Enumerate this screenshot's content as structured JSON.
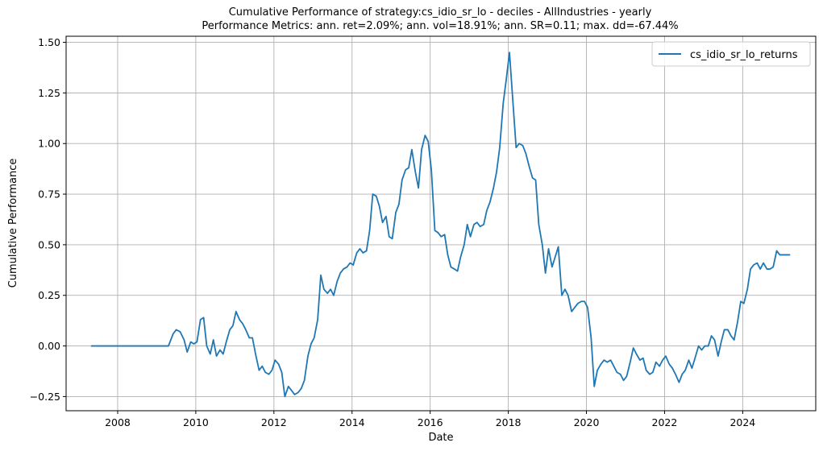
{
  "chart_data": {
    "type": "line",
    "title": "Cumulative Performance of strategy:cs_idio_sr_lo - deciles - AllIndustries - yearly",
    "subtitle": "Performance Metrics: ann. ret=2.09%; ann. vol=18.91%; ann. SR=0.11; max. dd=-67.44%",
    "xlabel": "Date",
    "ylabel": "Cumulative Performance",
    "xlim": [
      2006.68,
      2025.87
    ],
    "ylim": [
      -0.32,
      1.53
    ],
    "grid": true,
    "legend_position": "top-right",
    "x_ticks": [
      2008,
      2010,
      2012,
      2014,
      2016,
      2018,
      2020,
      2022,
      2024
    ],
    "x_tick_labels": [
      "2008",
      "2010",
      "2012",
      "2014",
      "2016",
      "2018",
      "2020",
      "2022",
      "2024"
    ],
    "y_ticks": [
      -0.25,
      0.0,
      0.25,
      0.5,
      0.75,
      1.0,
      1.25,
      1.5
    ],
    "y_tick_labels": [
      "−0.25",
      "0.00",
      "0.25",
      "0.50",
      "0.75",
      "1.00",
      "1.25",
      "1.50"
    ],
    "colors": {
      "series": "#1f77b4",
      "grid": "#b0b0b0"
    },
    "series": [
      {
        "name": "cs_idio_sr_lo_returns",
        "points": [
          [
            2007.33,
            0.0
          ],
          [
            2007.5,
            0.0
          ],
          [
            2007.75,
            0.0
          ],
          [
            2008.0,
            0.0
          ],
          [
            2008.25,
            0.0
          ],
          [
            2008.5,
            0.0
          ],
          [
            2008.75,
            0.0
          ],
          [
            2009.0,
            0.0
          ],
          [
            2009.3,
            0.0
          ],
          [
            2009.42,
            0.06
          ],
          [
            2009.5,
            0.08
          ],
          [
            2009.6,
            0.07
          ],
          [
            2009.7,
            0.03
          ],
          [
            2009.78,
            -0.03
          ],
          [
            2009.87,
            0.02
          ],
          [
            2009.95,
            0.01
          ],
          [
            2010.03,
            0.02
          ],
          [
            2010.12,
            0.13
          ],
          [
            2010.2,
            0.14
          ],
          [
            2010.28,
            0.0
          ],
          [
            2010.37,
            -0.04
          ],
          [
            2010.45,
            0.03
          ],
          [
            2010.53,
            -0.05
          ],
          [
            2010.62,
            -0.02
          ],
          [
            2010.7,
            -0.04
          ],
          [
            2010.78,
            0.02
          ],
          [
            2010.87,
            0.08
          ],
          [
            2010.95,
            0.1
          ],
          [
            2011.03,
            0.17
          ],
          [
            2011.12,
            0.13
          ],
          [
            2011.2,
            0.11
          ],
          [
            2011.28,
            0.08
          ],
          [
            2011.37,
            0.04
          ],
          [
            2011.45,
            0.04
          ],
          [
            2011.53,
            -0.04
          ],
          [
            2011.62,
            -0.12
          ],
          [
            2011.7,
            -0.1
          ],
          [
            2011.78,
            -0.13
          ],
          [
            2011.87,
            -0.14
          ],
          [
            2011.95,
            -0.12
          ],
          [
            2012.03,
            -0.07
          ],
          [
            2012.12,
            -0.09
          ],
          [
            2012.2,
            -0.13
          ],
          [
            2012.28,
            -0.25
          ],
          [
            2012.37,
            -0.2
          ],
          [
            2012.45,
            -0.22
          ],
          [
            2012.53,
            -0.24
          ],
          [
            2012.62,
            -0.23
          ],
          [
            2012.7,
            -0.21
          ],
          [
            2012.78,
            -0.17
          ],
          [
            2012.87,
            -0.05
          ],
          [
            2012.95,
            0.01
          ],
          [
            2013.03,
            0.04
          ],
          [
            2013.12,
            0.13
          ],
          [
            2013.2,
            0.35
          ],
          [
            2013.28,
            0.28
          ],
          [
            2013.37,
            0.26
          ],
          [
            2013.45,
            0.28
          ],
          [
            2013.53,
            0.25
          ],
          [
            2013.62,
            0.32
          ],
          [
            2013.7,
            0.36
          ],
          [
            2013.78,
            0.38
          ],
          [
            2013.87,
            0.39
          ],
          [
            2013.95,
            0.41
          ],
          [
            2014.03,
            0.4
          ],
          [
            2014.12,
            0.46
          ],
          [
            2014.2,
            0.48
          ],
          [
            2014.28,
            0.46
          ],
          [
            2014.37,
            0.47
          ],
          [
            2014.45,
            0.57
          ],
          [
            2014.53,
            0.75
          ],
          [
            2014.62,
            0.74
          ],
          [
            2014.7,
            0.69
          ],
          [
            2014.78,
            0.61
          ],
          [
            2014.87,
            0.64
          ],
          [
            2014.95,
            0.54
          ],
          [
            2015.03,
            0.53
          ],
          [
            2015.12,
            0.66
          ],
          [
            2015.2,
            0.7
          ],
          [
            2015.28,
            0.82
          ],
          [
            2015.37,
            0.87
          ],
          [
            2015.45,
            0.88
          ],
          [
            2015.53,
            0.97
          ],
          [
            2015.62,
            0.86
          ],
          [
            2015.7,
            0.78
          ],
          [
            2015.78,
            0.97
          ],
          [
            2015.87,
            1.04
          ],
          [
            2015.95,
            1.01
          ],
          [
            2016.03,
            0.87
          ],
          [
            2016.12,
            0.57
          ],
          [
            2016.2,
            0.56
          ],
          [
            2016.28,
            0.54
          ],
          [
            2016.37,
            0.55
          ],
          [
            2016.45,
            0.45
          ],
          [
            2016.53,
            0.39
          ],
          [
            2016.62,
            0.38
          ],
          [
            2016.7,
            0.37
          ],
          [
            2016.78,
            0.44
          ],
          [
            2016.87,
            0.5
          ],
          [
            2016.95,
            0.6
          ],
          [
            2017.03,
            0.54
          ],
          [
            2017.12,
            0.6
          ],
          [
            2017.2,
            0.61
          ],
          [
            2017.28,
            0.59
          ],
          [
            2017.37,
            0.6
          ],
          [
            2017.45,
            0.67
          ],
          [
            2017.53,
            0.71
          ],
          [
            2017.62,
            0.78
          ],
          [
            2017.7,
            0.86
          ],
          [
            2017.78,
            0.98
          ],
          [
            2017.87,
            1.2
          ],
          [
            2017.95,
            1.32
          ],
          [
            2018.03,
            1.45
          ],
          [
            2018.12,
            1.2
          ],
          [
            2018.2,
            0.98
          ],
          [
            2018.28,
            1.0
          ],
          [
            2018.37,
            0.99
          ],
          [
            2018.45,
            0.95
          ],
          [
            2018.53,
            0.89
          ],
          [
            2018.62,
            0.83
          ],
          [
            2018.7,
            0.82
          ],
          [
            2018.78,
            0.6
          ],
          [
            2018.87,
            0.5
          ],
          [
            2018.95,
            0.36
          ],
          [
            2019.03,
            0.48
          ],
          [
            2019.12,
            0.39
          ],
          [
            2019.2,
            0.44
          ],
          [
            2019.28,
            0.49
          ],
          [
            2019.37,
            0.25
          ],
          [
            2019.45,
            0.28
          ],
          [
            2019.53,
            0.25
          ],
          [
            2019.62,
            0.17
          ],
          [
            2019.7,
            0.19
          ],
          [
            2019.78,
            0.21
          ],
          [
            2019.87,
            0.22
          ],
          [
            2019.95,
            0.22
          ],
          [
            2020.03,
            0.19
          ],
          [
            2020.12,
            0.04
          ],
          [
            2020.2,
            -0.2
          ],
          [
            2020.28,
            -0.12
          ],
          [
            2020.37,
            -0.09
          ],
          [
            2020.45,
            -0.07
          ],
          [
            2020.53,
            -0.08
          ],
          [
            2020.62,
            -0.07
          ],
          [
            2020.7,
            -0.1
          ],
          [
            2020.78,
            -0.13
          ],
          [
            2020.87,
            -0.14
          ],
          [
            2020.95,
            -0.17
          ],
          [
            2021.03,
            -0.15
          ],
          [
            2021.12,
            -0.08
          ],
          [
            2021.2,
            -0.01
          ],
          [
            2021.28,
            -0.04
          ],
          [
            2021.37,
            -0.07
          ],
          [
            2021.45,
            -0.06
          ],
          [
            2021.53,
            -0.12
          ],
          [
            2021.62,
            -0.14
          ],
          [
            2021.7,
            -0.13
          ],
          [
            2021.78,
            -0.08
          ],
          [
            2021.87,
            -0.1
          ],
          [
            2021.95,
            -0.07
          ],
          [
            2022.03,
            -0.05
          ],
          [
            2022.12,
            -0.09
          ],
          [
            2022.2,
            -0.11
          ],
          [
            2022.28,
            -0.14
          ],
          [
            2022.37,
            -0.18
          ],
          [
            2022.45,
            -0.14
          ],
          [
            2022.53,
            -0.12
          ],
          [
            2022.62,
            -0.07
          ],
          [
            2022.7,
            -0.11
          ],
          [
            2022.78,
            -0.06
          ],
          [
            2022.87,
            0.0
          ],
          [
            2022.95,
            -0.02
          ],
          [
            2023.03,
            0.0
          ],
          [
            2023.12,
            0.0
          ],
          [
            2023.2,
            0.05
          ],
          [
            2023.28,
            0.03
          ],
          [
            2023.37,
            -0.05
          ],
          [
            2023.45,
            0.02
          ],
          [
            2023.53,
            0.08
          ],
          [
            2023.62,
            0.08
          ],
          [
            2023.7,
            0.05
          ],
          [
            2023.78,
            0.03
          ],
          [
            2023.87,
            0.12
          ],
          [
            2023.95,
            0.22
          ],
          [
            2024.03,
            0.21
          ],
          [
            2024.12,
            0.28
          ],
          [
            2024.2,
            0.38
          ],
          [
            2024.28,
            0.4
          ],
          [
            2024.37,
            0.41
          ],
          [
            2024.45,
            0.38
          ],
          [
            2024.53,
            0.41
          ],
          [
            2024.62,
            0.38
          ],
          [
            2024.7,
            0.38
          ],
          [
            2024.78,
            0.39
          ],
          [
            2024.87,
            0.47
          ],
          [
            2024.95,
            0.45
          ],
          [
            2025.03,
            0.45
          ],
          [
            2025.12,
            0.45
          ],
          [
            2025.2,
            0.45
          ]
        ]
      }
    ]
  }
}
